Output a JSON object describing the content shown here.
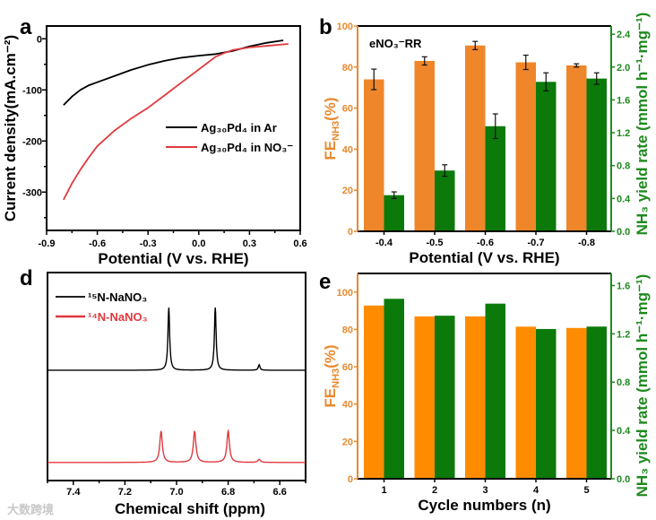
{
  "colors": {
    "orange": "#F0862A",
    "orange_axis": "#E8892E",
    "green": "#0B7A0B",
    "green_axis": "#1E8A1E",
    "red": "#E0393E",
    "black": "#000000"
  },
  "watermark": "大数跨境",
  "chart_data": [
    {
      "panel": "a",
      "type": "line",
      "xlabel": "Potential (V vs. RHE)",
      "ylabel": "Current density(mA.cm⁻²)",
      "xlim": [
        -0.9,
        0.6
      ],
      "ylim": [
        -375,
        25
      ],
      "xticks": [
        "-0.9",
        "-0.6",
        "-0.3",
        "0.0",
        "0.3",
        "0.6"
      ],
      "xtick_values": [
        -0.9,
        -0.6,
        -0.3,
        0.0,
        0.3,
        0.6
      ],
      "yticks": [
        "0",
        "-100",
        "-200",
        "-300"
      ],
      "ytick_values": [
        0,
        -100,
        -200,
        -300
      ],
      "legend_position": "center-right",
      "series": [
        {
          "name": "Ag₃₀Pd₄ in Ar",
          "color": "#000000",
          "x": [
            -0.8,
            -0.75,
            -0.7,
            -0.65,
            -0.6,
            -0.5,
            -0.4,
            -0.3,
            -0.2,
            -0.1,
            0.0,
            0.1,
            0.2,
            0.3,
            0.4,
            0.5
          ],
          "y": [
            -130,
            -113,
            -100,
            -91,
            -85,
            -73,
            -61,
            -51,
            -43,
            -37,
            -33,
            -30,
            -24,
            -15,
            -8,
            -3
          ]
        },
        {
          "name": "Ag₃₀Pd₄ in NO₃⁻",
          "color": "#E0393E",
          "x": [
            -0.8,
            -0.75,
            -0.7,
            -0.65,
            -0.6,
            -0.5,
            -0.4,
            -0.3,
            -0.2,
            -0.1,
            0.0,
            0.1,
            0.15,
            0.2,
            0.3,
            0.4,
            0.53
          ],
          "y": [
            -315,
            -283,
            -256,
            -232,
            -210,
            -180,
            -156,
            -135,
            -110,
            -85,
            -60,
            -35,
            -28,
            -22,
            -17,
            -14,
            -10
          ]
        }
      ]
    },
    {
      "panel": "b",
      "type": "bar",
      "annotation": "eNO₃⁻RR",
      "xlabel": "Potential (V vs. RHE)",
      "ylabel_left": {
        "main": "FE",
        "sub": "NH3",
        "rest": "(%)"
      },
      "ylabel_right": "NH₃ yield rate (mmol h⁻¹·mg⁻¹)",
      "categories": [
        "-0.4",
        "-0.5",
        "-0.6",
        "-0.7",
        "-0.8"
      ],
      "ylim_left": [
        0,
        100
      ],
      "ylim_right": [
        0,
        2.5
      ],
      "yticks_left": [
        "0",
        "20",
        "40",
        "60",
        "80",
        "100"
      ],
      "yticks_left_values": [
        0,
        20,
        40,
        60,
        80,
        100
      ],
      "yticks_right": [
        "0.0",
        "0.4",
        "0.8",
        "1.2",
        "1.6",
        "2.0",
        "2.4"
      ],
      "yticks_right_values": [
        0,
        0.4,
        0.8,
        1.2,
        1.6,
        2.0,
        2.4
      ],
      "series": [
        {
          "name": "FE NH3 (%)",
          "axis": "left",
          "color": "#F0862A",
          "values": [
            74,
            83,
            90.5,
            82.3,
            80.8
          ],
          "errors": [
            5,
            2,
            2,
            3.5,
            0.8
          ]
        },
        {
          "name": "NH3 yield rate",
          "axis": "right",
          "color": "#0B7A0B",
          "values": [
            0.44,
            0.74,
            1.28,
            1.82,
            1.86
          ],
          "errors": [
            0.04,
            0.07,
            0.15,
            0.11,
            0.07
          ]
        }
      ]
    },
    {
      "panel": "d",
      "type": "line",
      "xlabel": "Chemical shift (ppm)",
      "xlim": [
        7.5,
        6.5
      ],
      "ylim": [
        0,
        6.9
      ],
      "xticks": [
        "7.4",
        "7.2",
        "7.0",
        "6.8",
        "6.6"
      ],
      "xtick_values": [
        7.4,
        7.2,
        7.0,
        6.8,
        6.6
      ],
      "legend_position": "top-left",
      "series": [
        {
          "name": "¹⁵N-NaNO₃",
          "color": "#000000",
          "baseline": 3.66,
          "width": 0.004,
          "peaks": [
            {
              "ppm": 7.03,
              "height": 2.08
            },
            {
              "ppm": 6.85,
              "height": 2.08
            },
            {
              "ppm": 6.68,
              "height": 0.18
            }
          ]
        },
        {
          "name": "¹⁴N-NaNO₃",
          "color": "#E0393E",
          "baseline": 0.6,
          "width": 0.006,
          "peaks": [
            {
              "ppm": 7.06,
              "height": 1.04
            },
            {
              "ppm": 6.93,
              "height": 1.04
            },
            {
              "ppm": 6.8,
              "height": 1.04
            },
            {
              "ppm": 6.68,
              "height": 0.1
            }
          ]
        }
      ]
    },
    {
      "panel": "e",
      "type": "bar",
      "xlabel": "Cycle numbers (n)",
      "ylabel_left": {
        "main": "FE",
        "sub": "NH3",
        "rest": "(%)"
      },
      "ylabel_right": "NH₃ yield rate (mmol h⁻¹·mg⁻¹)",
      "categories": [
        "1",
        "2",
        "3",
        "4",
        "5"
      ],
      "ylim_left": [
        0,
        110
      ],
      "ylim_right": [
        0,
        1.7
      ],
      "yticks_left": [
        "0",
        "20",
        "40",
        "60",
        "80",
        "100"
      ],
      "yticks_left_values": [
        0,
        20,
        40,
        60,
        80,
        100
      ],
      "yticks_right": [
        "0.0",
        "0.4",
        "0.8",
        "1.2",
        "1.6"
      ],
      "yticks_right_values": [
        0,
        0.4,
        0.8,
        1.2,
        1.6
      ],
      "series": [
        {
          "name": "FE NH3 (%)",
          "axis": "left",
          "color": "#FF8C00",
          "values": [
            92.8,
            87,
            87,
            81.5,
            80.8
          ]
        },
        {
          "name": "NH3 yield rate",
          "axis": "right",
          "color": "#0B7A0B",
          "values": [
            1.49,
            1.35,
            1.45,
            1.24,
            1.26
          ]
        }
      ]
    }
  ],
  "panel_labels": [
    "a",
    "b",
    "d",
    "e"
  ]
}
